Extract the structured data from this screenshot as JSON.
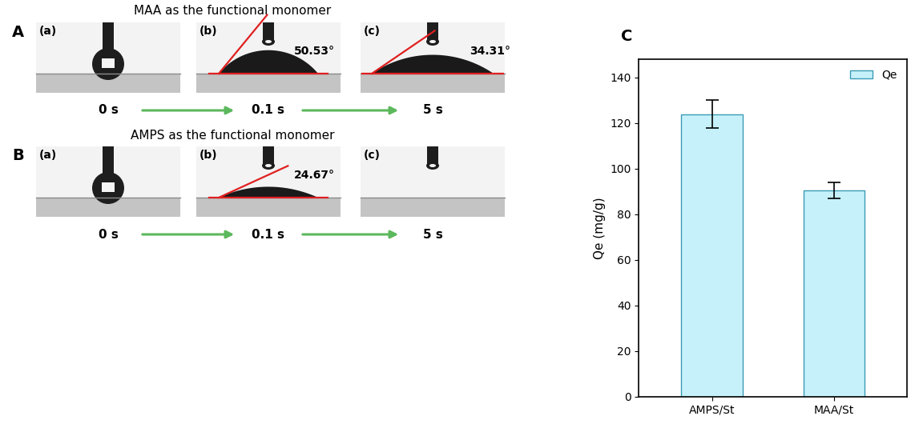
{
  "panels": [
    {
      "panel_label": "A",
      "title": "MAA as the functional monomer",
      "frames": [
        {
          "label": "(a)",
          "time": "0 s"
        },
        {
          "label": "(b)",
          "time": "0.1 s",
          "angle": {
            "value": 50.53,
            "label": "50.53°"
          }
        },
        {
          "label": "(c)",
          "time": "5 s",
          "angle": {
            "value": 34.31,
            "label": "34.31°"
          }
        }
      ]
    },
    {
      "panel_label": "B",
      "title": "AMPS as the functional monomer",
      "frames": [
        {
          "label": "(a)",
          "time": "0 s"
        },
        {
          "label": "(b)",
          "time": "0.1 s",
          "angle": {
            "value": 24.67,
            "label": "24.67°"
          }
        },
        {
          "label": "(c)",
          "time": "5 s"
        }
      ]
    }
  ],
  "chart_data": {
    "type": "bar",
    "panel_label": "C",
    "categories": [
      "AMPS/St",
      "MAA/St"
    ],
    "series": [
      {
        "name": "Qe",
        "color": "#c6f1fb",
        "values": [
          124,
          90.5
        ],
        "errors": [
          6,
          3.5
        ]
      }
    ],
    "y_label": "Qe (mg/g)",
    "ylim": [
      0,
      148
    ],
    "yticks": [
      0,
      20,
      40,
      60,
      80,
      100,
      120,
      140
    ],
    "legend": "upper right",
    "grid": false
  }
}
